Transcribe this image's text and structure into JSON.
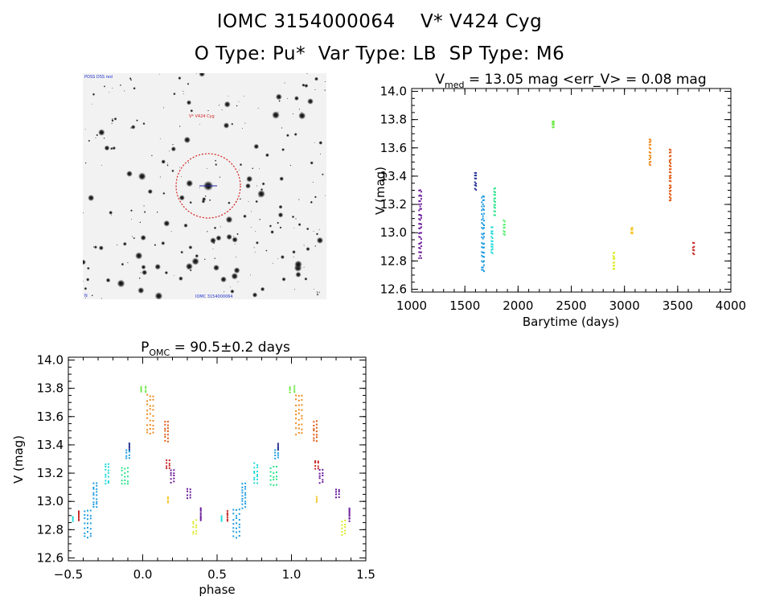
{
  "header": {
    "object_id": "IOMC 3154000064",
    "star_name": "V* V424 Cyg",
    "o_type": "O Type: Pu*",
    "var_type": "Var Type: LB",
    "sp_type": "SP Type: M6"
  },
  "finder": {
    "top_left_label": "POSS DSS red",
    "circle_label": "V* V424 Cyg",
    "bottom_left_label": "N",
    "bottom_label": "IOMC 3154000064",
    "scale_label": "1'"
  },
  "chart_data": [
    {
      "type": "scatter",
      "title": "V_med = 13.05 mag <err_V> = 0.08 mag",
      "title_parts": {
        "v": "V",
        "v_sub": "med",
        "rest": " = 13.05 mag <err_V> = 0.08 mag"
      },
      "xlabel": "Barytime (days)",
      "ylabel": "V (mag)",
      "xlim": [
        1000,
        4000
      ],
      "ylim": [
        14.02,
        12.58
      ],
      "xticks": [
        "1000",
        "1500",
        "2000",
        "2500",
        "3000",
        "3500",
        "4000"
      ],
      "yticks": [
        "12.6",
        "12.8",
        "13.0",
        "13.2",
        "13.4",
        "13.6",
        "13.8",
        "14.0"
      ],
      "series": [
        {
          "name": "t1080",
          "color": "#6a1b9a",
          "x": [
            1070,
            1080,
            1090
          ],
          "y_range": [
            12.82,
            13.32
          ]
        },
        {
          "name": "t1600",
          "color": "#283593",
          "x": [
            1595,
            1605
          ],
          "y_range": [
            13.3,
            13.44
          ]
        },
        {
          "name": "t1670",
          "color": "#1e9be0",
          "x": [
            1660,
            1670,
            1680
          ],
          "y_range": [
            12.72,
            13.28
          ]
        },
        {
          "name": "t1760",
          "color": "#20d9d9",
          "x": [
            1750,
            1760
          ],
          "y_range": [
            12.85,
            13.05
          ]
        },
        {
          "name": "t1780",
          "color": "#2de38a",
          "x": [
            1775,
            1785
          ],
          "y_range": [
            13.12,
            13.33
          ]
        },
        {
          "name": "t1870",
          "color": "#4ef06a",
          "x": [
            1865,
            1875
          ],
          "y_range": [
            12.98,
            13.1
          ]
        },
        {
          "name": "t2330",
          "color": "#6fe84a",
          "x": [
            2325,
            2335
          ],
          "y_range": [
            13.74,
            13.8
          ]
        },
        {
          "name": "t2900",
          "color": "#dcea28",
          "x": [
            2895,
            2905
          ],
          "y_range": [
            12.74,
            12.87
          ]
        },
        {
          "name": "t3070",
          "color": "#f2c72a",
          "x": [
            3065,
            3075
          ],
          "y_range": [
            12.99,
            13.04
          ]
        },
        {
          "name": "t3240",
          "color": "#ee8a1f",
          "x": [
            3235,
            3245
          ],
          "y_range": [
            13.47,
            13.68
          ]
        },
        {
          "name": "t3430",
          "color": "#e05a14",
          "x": [
            3425,
            3435
          ],
          "y_range": [
            13.22,
            13.6
          ]
        },
        {
          "name": "t3650",
          "color": "#c62828",
          "x": [
            3645,
            3655
          ],
          "y_range": [
            12.84,
            12.94
          ]
        }
      ]
    },
    {
      "type": "scatter",
      "title": "P_OMC = 90.5±0.2 days",
      "title_parts": {
        "p": "P",
        "p_sub": "OMC",
        "rest": " = 90.5±0.2 days"
      },
      "xlabel": "phase",
      "ylabel": "V (mag)",
      "xlim": [
        -0.5,
        1.5
      ],
      "ylim": [
        14.02,
        12.58
      ],
      "xticks": [
        "−0.5",
        "0.0",
        "0.5",
        "1.0",
        "1.5"
      ],
      "yticks": [
        "12.6",
        "12.8",
        "13.0",
        "13.2",
        "13.4",
        "13.6",
        "13.8",
        "14.0"
      ],
      "series": [
        {
          "name": "p-0.47",
          "color": "#20d9d9",
          "x": [
            -0.47
          ],
          "y_range": [
            12.86,
            12.9
          ]
        },
        {
          "name": "p-0.43",
          "color": "#c62828",
          "x": [
            -0.43
          ],
          "y_range": [
            12.86,
            12.94
          ]
        },
        {
          "name": "p-0.37",
          "color": "#1e9be0",
          "x": [
            -0.39,
            -0.37,
            -0.35
          ],
          "y_range": [
            12.74,
            12.96
          ]
        },
        {
          "name": "p-0.32",
          "color": "#1e9be0",
          "x": [
            -0.33,
            -0.31
          ],
          "y_range": [
            12.95,
            13.14
          ]
        },
        {
          "name": "p-0.24",
          "color": "#20d9d9",
          "x": [
            -0.25,
            -0.23
          ],
          "y_range": [
            13.12,
            13.28
          ]
        },
        {
          "name": "p-0.13",
          "color": "#2de38a",
          "x": [
            -0.14,
            -0.12,
            -0.1
          ],
          "y_range": [
            13.11,
            13.26
          ]
        },
        {
          "name": "p-0.11",
          "color": "#1e9be0",
          "x": [
            -0.11,
            -0.09
          ],
          "y_range": [
            13.3,
            13.38
          ]
        },
        {
          "name": "p-0.08",
          "color": "#283593",
          "x": [
            -0.09
          ],
          "y_range": [
            13.36,
            13.42
          ]
        },
        {
          "name": "p0.00",
          "color": "#6fe84a",
          "x": [
            -0.01,
            0.02
          ],
          "y_range": [
            13.77,
            13.82
          ]
        },
        {
          "name": "p0.05",
          "color": "#ee8a1f",
          "x": [
            0.03,
            0.05,
            0.07
          ],
          "y_range": [
            13.47,
            13.77
          ]
        },
        {
          "name": "p0.17",
          "color": "#e05a14",
          "x": [
            0.15,
            0.17
          ],
          "y_range": [
            13.42,
            13.58
          ]
        },
        {
          "name": "p0.18",
          "color": "#c62828",
          "x": [
            0.16,
            0.18
          ],
          "y_range": [
            13.23,
            13.3
          ]
        },
        {
          "name": "p0.19",
          "color": "#f2c72a",
          "x": [
            0.17
          ],
          "y_range": [
            12.99,
            13.04
          ]
        },
        {
          "name": "p0.20",
          "color": "#6a1b9a",
          "x": [
            0.19,
            0.21
          ],
          "y_range": [
            13.13,
            13.24
          ]
        },
        {
          "name": "p0.31",
          "color": "#6a1b9a",
          "x": [
            0.3,
            0.32
          ],
          "y_range": [
            13.02,
            13.1
          ]
        },
        {
          "name": "p0.35",
          "color": "#dcea28",
          "x": [
            0.34,
            0.36
          ],
          "y_range": [
            12.76,
            12.88
          ]
        },
        {
          "name": "p0.39",
          "color": "#6a1b9a",
          "x": [
            0.39
          ],
          "y_range": [
            12.86,
            12.96
          ]
        },
        {
          "name": "p0.53",
          "color": "#20d9d9",
          "x": [
            0.53
          ],
          "y_range": [
            12.86,
            12.9
          ]
        },
        {
          "name": "p0.57",
          "color": "#c62828",
          "x": [
            0.57
          ],
          "y_range": [
            12.86,
            12.94
          ]
        },
        {
          "name": "p0.63",
          "color": "#1e9be0",
          "x": [
            0.61,
            0.63,
            0.65
          ],
          "y_range": [
            12.74,
            12.96
          ]
        },
        {
          "name": "p0.68",
          "color": "#1e9be0",
          "x": [
            0.67,
            0.69
          ],
          "y_range": [
            12.95,
            13.14
          ]
        },
        {
          "name": "p0.76",
          "color": "#20d9d9",
          "x": [
            0.75,
            0.77
          ],
          "y_range": [
            13.12,
            13.28
          ]
        },
        {
          "name": "p0.87",
          "color": "#2de38a",
          "x": [
            0.86,
            0.88,
            0.9
          ],
          "y_range": [
            13.11,
            13.26
          ]
        },
        {
          "name": "p0.89",
          "color": "#1e9be0",
          "x": [
            0.89,
            0.91
          ],
          "y_range": [
            13.3,
            13.38
          ]
        },
        {
          "name": "p0.92",
          "color": "#283593",
          "x": [
            0.91
          ],
          "y_range": [
            13.36,
            13.42
          ]
        },
        {
          "name": "p1.00",
          "color": "#6fe84a",
          "x": [
            0.99,
            1.02
          ],
          "y_range": [
            13.77,
            13.82
          ]
        },
        {
          "name": "p1.05",
          "color": "#ee8a1f",
          "x": [
            1.03,
            1.05,
            1.07
          ],
          "y_range": [
            13.47,
            13.77
          ]
        },
        {
          "name": "p1.17",
          "color": "#e05a14",
          "x": [
            1.15,
            1.17
          ],
          "y_range": [
            13.42,
            13.58
          ]
        },
        {
          "name": "p1.18",
          "color": "#c62828",
          "x": [
            1.16,
            1.18
          ],
          "y_range": [
            13.23,
            13.3
          ]
        },
        {
          "name": "p1.19",
          "color": "#f2c72a",
          "x": [
            1.17
          ],
          "y_range": [
            12.99,
            13.04
          ]
        },
        {
          "name": "p1.20",
          "color": "#6a1b9a",
          "x": [
            1.19,
            1.21
          ],
          "y_range": [
            13.13,
            13.24
          ]
        },
        {
          "name": "p1.31",
          "color": "#6a1b9a",
          "x": [
            1.3,
            1.32
          ],
          "y_range": [
            13.02,
            13.1
          ]
        },
        {
          "name": "p1.35",
          "color": "#dcea28",
          "x": [
            1.34,
            1.36
          ],
          "y_range": [
            12.76,
            12.88
          ]
        },
        {
          "name": "p1.39",
          "color": "#6a1b9a",
          "x": [
            1.39
          ],
          "y_range": [
            12.86,
            12.96
          ]
        }
      ]
    }
  ]
}
